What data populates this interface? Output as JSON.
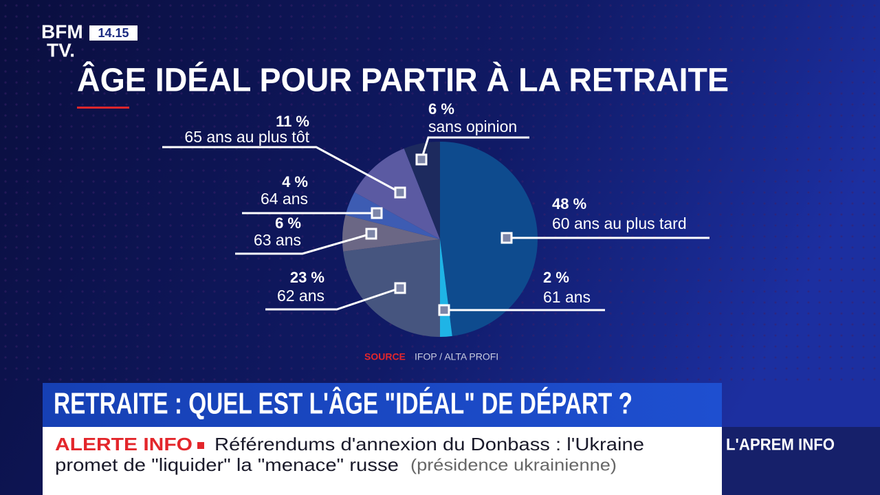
{
  "channel": {
    "logo_top": "BFM",
    "logo_bottom": "TV.",
    "time": "14.15"
  },
  "chart_data": {
    "type": "pie",
    "title": "ÂGE IDÉAL POUR PARTIR À LA RETRAITE",
    "categories": [
      "60 ans au plus tard",
      "61 ans",
      "62 ans",
      "63 ans",
      "64 ans",
      "65 ans au plus tôt",
      "sans opinion"
    ],
    "values": [
      48,
      2,
      23,
      6,
      4,
      11,
      6
    ],
    "value_labels": [
      "48 %",
      "2 %",
      "23 %",
      "6 %",
      "4 %",
      "11 %",
      "6 %"
    ],
    "colors": [
      "#0e4b8e",
      "#1fb4e6",
      "#46557f",
      "#6b6785",
      "#3d5cb3",
      "#5b5aa2",
      "#1d2a5e"
    ],
    "source_label": "SOURCE",
    "source": "IFOP / ALTA PROFI"
  },
  "headline": "RETRAITE : QUEL EST L'ÂGE \"IDÉAL\" DE DÉPART ?",
  "ticker": {
    "tag": "ALERTE INFO",
    "line1": "Référendums d'annexion du Donbass : l'Ukraine",
    "line2": "promet de \"liquider\" la \"menace\" russe",
    "attribution": "(présidence ukrainienne)"
  },
  "program": "L'APREM INFO"
}
